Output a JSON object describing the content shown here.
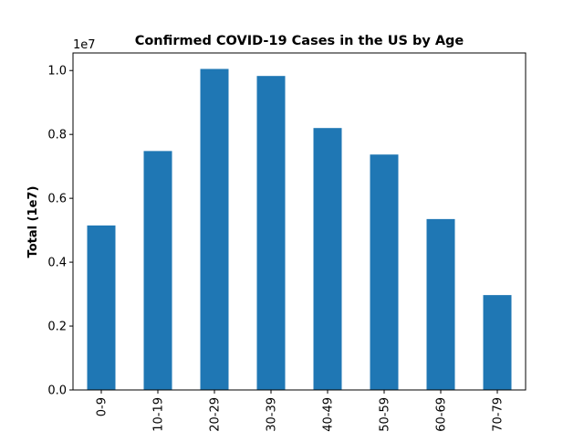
{
  "chart_data": {
    "type": "bar",
    "title": "Confirmed COVID-19 Cases in the US by Age",
    "xlabel": "",
    "ylabel": "Total (1e7)",
    "y_offset_label": "1e7",
    "categories": [
      "0-9",
      "10-19",
      "20-29",
      "30-39",
      "40-49",
      "50-59",
      "60-69",
      "70-79"
    ],
    "values": [
      5150000,
      7480000,
      10050000,
      9830000,
      8200000,
      7370000,
      5350000,
      2970000
    ],
    "ylim": [
      0,
      10550000
    ],
    "yticks": [
      0,
      2000000,
      4000000,
      6000000,
      8000000,
      10000000
    ],
    "ytick_labels": [
      "0.0",
      "0.2",
      "0.4",
      "0.6",
      "0.8",
      "1.0"
    ],
    "grid": false,
    "legend": "none",
    "bar_color": "#1f77b4"
  }
}
